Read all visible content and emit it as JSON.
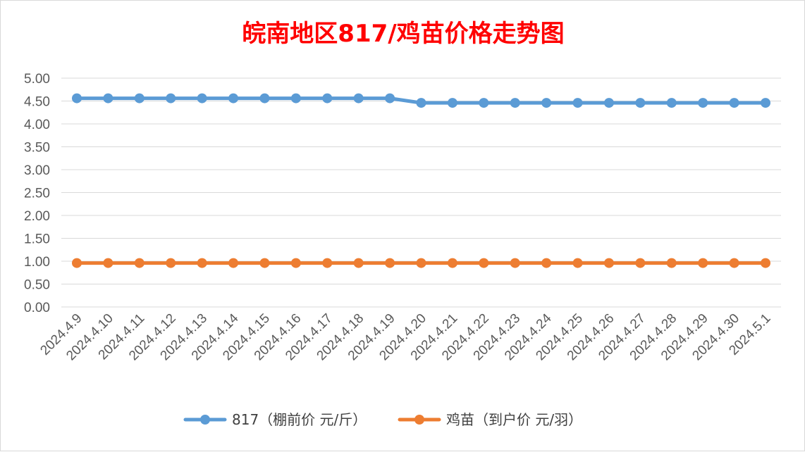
{
  "chart_data": {
    "type": "line",
    "title": "皖南地区817/鸡苗价格走势图",
    "categories": [
      "2024.4.9",
      "2024.4.10",
      "2024.4.11",
      "2024.4.12",
      "2024.4.13",
      "2024.4.14",
      "2024.4.15",
      "2024.4.16",
      "2024.4.17",
      "2024.4.18",
      "2024.4.19",
      "2024.4.20",
      "2024.4.21",
      "2024.4.22",
      "2024.4.23",
      "2024.4.24",
      "2024.4.25",
      "2024.4.26",
      "2024.4.27",
      "2024.4.28",
      "2024.4.29",
      "2024.4.30",
      "2024.5.1"
    ],
    "y_ticks": [
      "0.00",
      "0.50",
      "1.00",
      "1.50",
      "2.00",
      "2.50",
      "3.00",
      "3.50",
      "4.00",
      "4.50",
      "5.00"
    ],
    "ylim": [
      0,
      5
    ],
    "grid": true,
    "legend_position": "bottom",
    "series": [
      {
        "name": "817（棚前价 元/斤）",
        "color": "#5b9bd5",
        "values": [
          4.56,
          4.56,
          4.56,
          4.56,
          4.56,
          4.56,
          4.56,
          4.56,
          4.56,
          4.56,
          4.56,
          4.46,
          4.46,
          4.46,
          4.46,
          4.46,
          4.46,
          4.46,
          4.46,
          4.46,
          4.46,
          4.46,
          4.46
        ]
      },
      {
        "name": "鸡苗（到户价 元/羽）",
        "color": "#ed7d31",
        "values": [
          0.96,
          0.96,
          0.96,
          0.96,
          0.96,
          0.96,
          0.96,
          0.96,
          0.96,
          0.96,
          0.96,
          0.96,
          0.96,
          0.96,
          0.96,
          0.96,
          0.96,
          0.96,
          0.96,
          0.96,
          0.96,
          0.96,
          0.96
        ]
      }
    ]
  }
}
